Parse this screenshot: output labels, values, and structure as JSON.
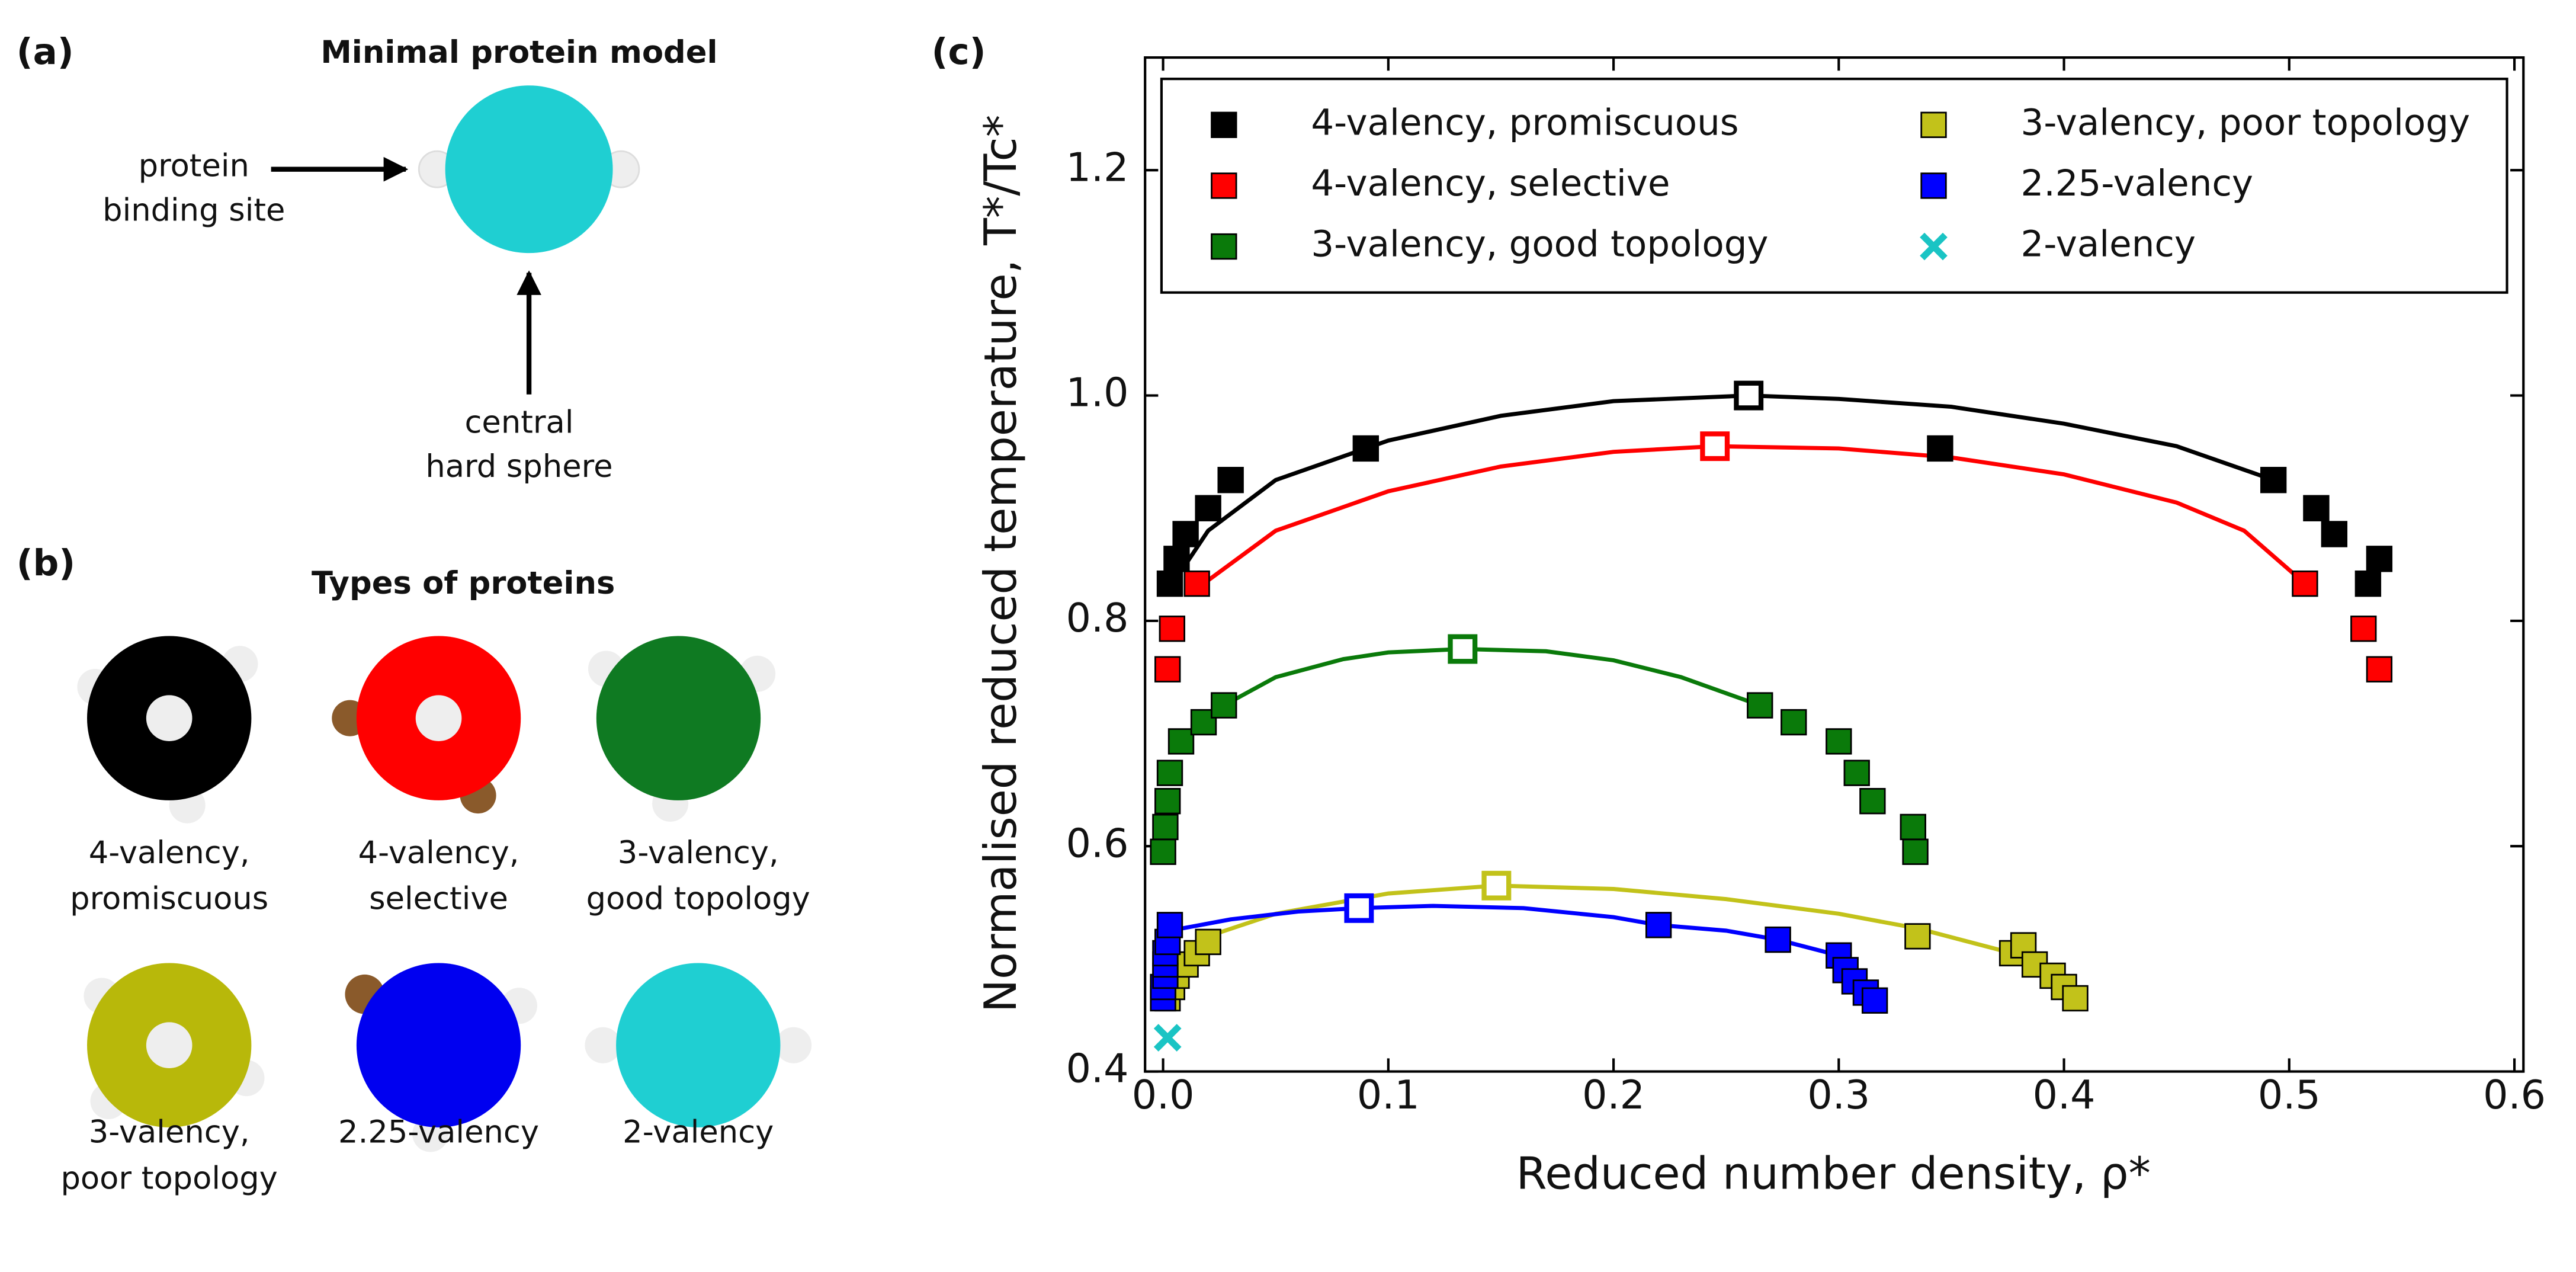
{
  "panel_a": {
    "label": "(a)",
    "title": "Minimal protein model",
    "binding_site": [
      "protein",
      "binding site"
    ],
    "hard_sphere": [
      "central",
      "hard sphere"
    ]
  },
  "panel_b": {
    "label": "(b)",
    "title": "Types of proteins",
    "proteins": [
      {
        "label": [
          "4-valency,",
          "promiscuous"
        ]
      },
      {
        "label": [
          "4-valency,",
          "selective"
        ]
      },
      {
        "label": [
          "3-valency,",
          "good topology"
        ]
      },
      {
        "label": [
          "3-valency,",
          "poor topology"
        ]
      },
      {
        "label": [
          "2.25-valency"
        ]
      },
      {
        "label": [
          "2-valency"
        ]
      }
    ]
  },
  "chart_data": {
    "type": "scatter",
    "panel_label": "(c)",
    "x_label": "Reduced number density, ρ*",
    "y_label": "Normalised reduced temperature, T*/Tc*",
    "xlim": [
      -0.008,
      0.604
    ],
    "ylim": [
      0.4,
      1.3
    ],
    "xticks": [
      {
        "value": 0,
        "label": "0.0"
      },
      0.1,
      0.2,
      0.3,
      0.4,
      0.5,
      0.6
    ],
    "yticks": [
      0.4,
      0.6,
      0.8,
      {
        "value": 1,
        "label": "1.0"
      },
      1.2
    ],
    "legend": "upper",
    "series": [
      {
        "name": "4-valency, promiscuous",
        "color": "#000000",
        "marker": "square",
        "x": [
          0.003,
          0.006,
          0.01,
          0.02,
          0.03,
          0.09,
          0.345,
          0.493,
          0.512,
          0.52,
          0.535,
          0.54
        ],
        "values": [
          0.833,
          0.855,
          0.877,
          0.9,
          0.925,
          0.953,
          0.953,
          0.925,
          0.9,
          0.877,
          0.833,
          0.855
        ],
        "critical_point": {
          "x": 0.26,
          "y": 1.0
        },
        "fit": {
          "x": [
            0.005,
            0.02,
            0.05,
            0.1,
            0.15,
            0.2,
            0.26,
            0.3,
            0.35,
            0.4,
            0.45,
            0.493
          ],
          "values": [
            0.835,
            0.88,
            0.925,
            0.96,
            0.982,
            0.995,
            1.0,
            0.997,
            0.99,
            0.975,
            0.955,
            0.925
          ]
        }
      },
      {
        "name": "4-valency, selective",
        "color": "#ff0000",
        "marker": "square",
        "x": [
          0.002,
          0.004,
          0.015,
          0.507,
          0.533,
          0.54
        ],
        "values": [
          0.757,
          0.793,
          0.833,
          0.833,
          0.793,
          0.757
        ],
        "critical_point": {
          "x": 0.245,
          "y": 0.955
        },
        "fit": {
          "x": [
            0.018,
            0.05,
            0.1,
            0.15,
            0.2,
            0.245,
            0.3,
            0.35,
            0.4,
            0.45,
            0.48,
            0.507
          ],
          "values": [
            0.833,
            0.88,
            0.915,
            0.937,
            0.95,
            0.955,
            0.953,
            0.945,
            0.93,
            0.905,
            0.88,
            0.833
          ]
        }
      },
      {
        "name": "3-valency, good topology",
        "color": "#0a7a0a",
        "marker": "square",
        "x": [
          0.0,
          0.001,
          0.002,
          0.003,
          0.008,
          0.018,
          0.027,
          0.265,
          0.28,
          0.3,
          0.308,
          0.315,
          0.333,
          0.334
        ],
        "values": [
          0.595,
          0.617,
          0.64,
          0.665,
          0.693,
          0.71,
          0.725,
          0.725,
          0.71,
          0.693,
          0.665,
          0.64,
          0.617,
          0.595
        ],
        "critical_point": {
          "x": 0.133,
          "y": 0.775
        },
        "fit": {
          "x": [
            0.027,
            0.05,
            0.08,
            0.1,
            0.133,
            0.17,
            0.2,
            0.23,
            0.265
          ],
          "values": [
            0.725,
            0.75,
            0.766,
            0.772,
            0.775,
            0.773,
            0.765,
            0.75,
            0.725
          ]
        }
      },
      {
        "name": "3-valency, poor topology",
        "color": "#c2c21a",
        "marker": "square",
        "x": [
          0.002,
          0.004,
          0.006,
          0.01,
          0.015,
          0.02,
          0.335,
          0.377,
          0.382,
          0.387,
          0.395,
          0.4,
          0.405
        ],
        "values": [
          0.465,
          0.475,
          0.485,
          0.495,
          0.505,
          0.515,
          0.52,
          0.505,
          0.512,
          0.495,
          0.485,
          0.475,
          0.465
        ],
        "critical_point": {
          "x": 0.148,
          "y": 0.565
        },
        "fit": {
          "x": [
            0.02,
            0.05,
            0.1,
            0.148,
            0.2,
            0.25,
            0.3,
            0.335,
            0.377
          ],
          "values": [
            0.52,
            0.54,
            0.558,
            0.565,
            0.562,
            0.553,
            0.54,
            0.527,
            0.505
          ]
        }
      },
      {
        "name": "2.25-valency",
        "color": "#0000ff",
        "marker": "square",
        "x": [
          0.0,
          0.0,
          0.001,
          0.001,
          0.001,
          0.002,
          0.003,
          0.22,
          0.273,
          0.3,
          0.303,
          0.307,
          0.312,
          0.316
        ],
        "values": [
          0.465,
          0.475,
          0.485,
          0.495,
          0.505,
          0.515,
          0.53,
          0.53,
          0.517,
          0.503,
          0.49,
          0.48,
          0.47,
          0.463
        ],
        "critical_point": {
          "x": 0.087,
          "y": 0.545
        },
        "fit": {
          "x": [
            0.003,
            0.03,
            0.06,
            0.087,
            0.12,
            0.16,
            0.2,
            0.22,
            0.25,
            0.273,
            0.3
          ],
          "values": [
            0.525,
            0.535,
            0.542,
            0.545,
            0.547,
            0.545,
            0.537,
            0.53,
            0.525,
            0.517,
            0.503
          ]
        }
      },
      {
        "name": "2-valency",
        "color": "#1ac4c4",
        "marker": "cross",
        "x": [
          0.002
        ],
        "values": [
          0.43
        ]
      }
    ]
  }
}
